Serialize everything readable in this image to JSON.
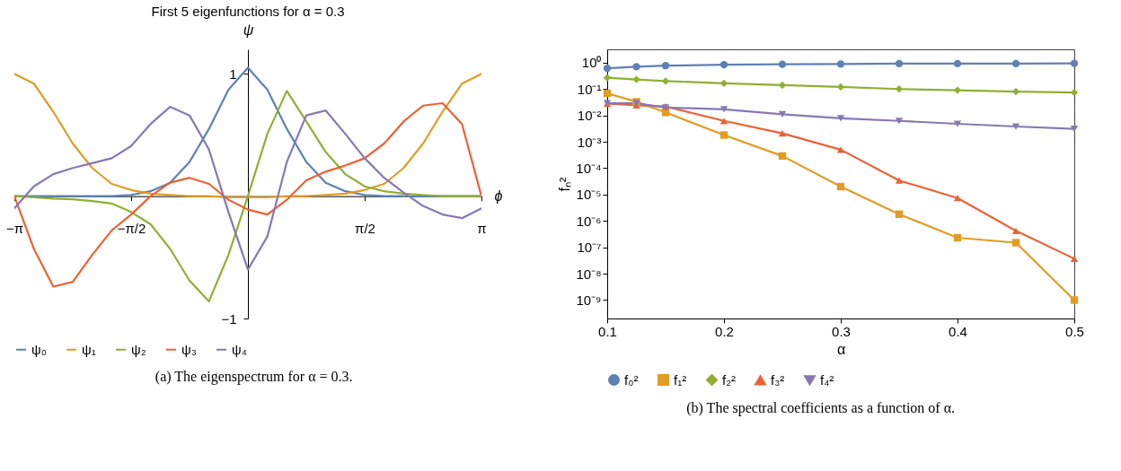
{
  "chart_data": [
    {
      "type": "line",
      "title": "First 5 eigenfunctions for α = 0.3",
      "xlabel": "ϕ",
      "ylabel": "ψ",
      "legend": "bottom",
      "grid": false,
      "x": [
        -3.1416,
        -2.8798,
        -2.618,
        -2.3562,
        -2.0944,
        -1.8326,
        -1.5708,
        -1.309,
        -1.0472,
        -0.7854,
        -0.5236,
        -0.2618,
        0,
        0.2618,
        0.5236,
        0.7854,
        1.0472,
        1.309,
        1.5708,
        1.8326,
        2.0944,
        2.3562,
        2.618,
        2.8798,
        3.1416
      ],
      "series": [
        {
          "name": "ψ₀",
          "color": "#5e81b5",
          "values": [
            0,
            0,
            0,
            0,
            0,
            0,
            0.01,
            0.04,
            0.11,
            0.28,
            0.55,
            0.87,
            1.05,
            0.87,
            0.55,
            0.28,
            0.11,
            0.04,
            0.01,
            0,
            0,
            0,
            0,
            0,
            0
          ]
        },
        {
          "name": "ψ₁",
          "color": "#e19c24",
          "values": [
            1,
            0.92,
            0.69,
            0.43,
            0.23,
            0.1,
            0.05,
            0.02,
            0.01,
            0,
            0,
            -0.01,
            -0.01,
            -0.01,
            0,
            0,
            0.01,
            0.02,
            0.05,
            0.1,
            0.23,
            0.43,
            0.69,
            0.92,
            1
          ]
        },
        {
          "name": "ψ₂",
          "color": "#8fb032",
          "values": [
            0,
            -0.01,
            -0.02,
            -0.025,
            -0.04,
            -0.06,
            -0.13,
            -0.23,
            -0.43,
            -0.69,
            -0.86,
            -0.48,
            0,
            0.51,
            0.86,
            0.61,
            0.36,
            0.18,
            0.08,
            0.04,
            0.02,
            0.01,
            0,
            0,
            0
          ]
        },
        {
          "name": "ψ₃",
          "color": "#eb6235",
          "values": [
            0,
            -0.43,
            -0.74,
            -0.7,
            -0.48,
            -0.28,
            -0.15,
            0,
            0.11,
            0.15,
            0.1,
            -0.03,
            -0.11,
            -0.15,
            -0.03,
            0.13,
            0.2,
            0.25,
            0.31,
            0.43,
            0.61,
            0.74,
            0.76,
            0.59,
            0
          ]
        },
        {
          "name": "ψ₄",
          "color": "#8778b3",
          "values": [
            -0.1,
            0.08,
            0.18,
            0.23,
            0.27,
            0.31,
            0.41,
            0.59,
            0.73,
            0.66,
            0.38,
            -0.13,
            -0.6,
            -0.33,
            0.28,
            0.66,
            0.7,
            0.51,
            0.31,
            0.15,
            0.03,
            -0.08,
            -0.15,
            -0.18,
            -0.1
          ]
        }
      ],
      "xlim": [
        -3.1416,
        3.1416
      ],
      "ylim": [
        -1,
        1.2
      ],
      "xticks": [
        {
          "value": -3.1416,
          "label": "−π"
        },
        {
          "value": -1.5708,
          "label": "−π/2"
        },
        {
          "value": 1.5708,
          "label": "π/2"
        },
        {
          "value": 3.1416,
          "label": "π"
        }
      ],
      "yticks": [
        1,
        -1
      ],
      "annotations": [
        "(a) The eigenspectrum for α = 0.3."
      ]
    },
    {
      "type": "line",
      "xlabel": "α",
      "ylabel": "fₙ²",
      "legend": "bottom",
      "grid": false,
      "log": true,
      "x": [
        0.1,
        0.125,
        0.15,
        0.2,
        0.25,
        0.3,
        0.35,
        0.4,
        0.45,
        0.5
      ],
      "series": [
        {
          "name": "f₀²",
          "color": "#5e81b5",
          "marker": "circle",
          "values": [
            0.61,
            0.7,
            0.77,
            0.84,
            0.87,
            0.89,
            0.92,
            0.92,
            0.92,
            0.94
          ]
        },
        {
          "name": "f₁²",
          "color": "#e19c24",
          "marker": "square",
          "values": [
            0.069,
            0.033,
            0.013,
            0.0018,
            0.00029,
            2e-05,
            1.8e-06,
            2.3e-07,
            1.5e-07,
            1e-09
          ]
        },
        {
          "name": "f₂²",
          "color": "#8fb032",
          "marker": "diamond",
          "values": [
            0.27,
            0.23,
            0.2,
            0.165,
            0.14,
            0.12,
            0.1,
            0.09,
            0.08,
            0.074
          ]
        },
        {
          "name": "f₃²",
          "color": "#eb6235",
          "marker": "triangle",
          "values": [
            0.028,
            0.024,
            0.022,
            0.0062,
            0.0021,
            0.0005,
            3.4e-05,
            7.4e-06,
            4.2e-07,
            3.7e-08
          ]
        },
        {
          "name": "f₄²",
          "color": "#8778b3",
          "marker": "triangle-down",
          "values": [
            0.029,
            0.029,
            0.02,
            0.017,
            0.011,
            0.0078,
            0.0062,
            0.0048,
            0.0038,
            0.0031
          ]
        }
      ],
      "xlim": [
        0.1,
        0.5
      ],
      "ylim": [
        2e-10,
        3.2
      ],
      "xticks": [
        0.1,
        0.2,
        0.3,
        0.4,
        0.5
      ],
      "yticks": [
        {
          "value": 1,
          "label": "10⁰"
        },
        {
          "value": 0.1,
          "label": "10⁻¹"
        },
        {
          "value": 0.01,
          "label": "10⁻²"
        },
        {
          "value": 0.001,
          "label": "10⁻³"
        },
        {
          "value": 0.0001,
          "label": "10⁻⁴"
        },
        {
          "value": 1e-05,
          "label": "10⁻⁵"
        },
        {
          "value": 1e-06,
          "label": "10⁻⁶"
        },
        {
          "value": 1e-07,
          "label": "10⁻⁷"
        },
        {
          "value": 1e-08,
          "label": "10⁻⁸"
        },
        {
          "value": 1e-09,
          "label": "10⁻⁹"
        }
      ],
      "annotations": [
        "(b) The spectral coefficients as a function of α."
      ]
    }
  ]
}
